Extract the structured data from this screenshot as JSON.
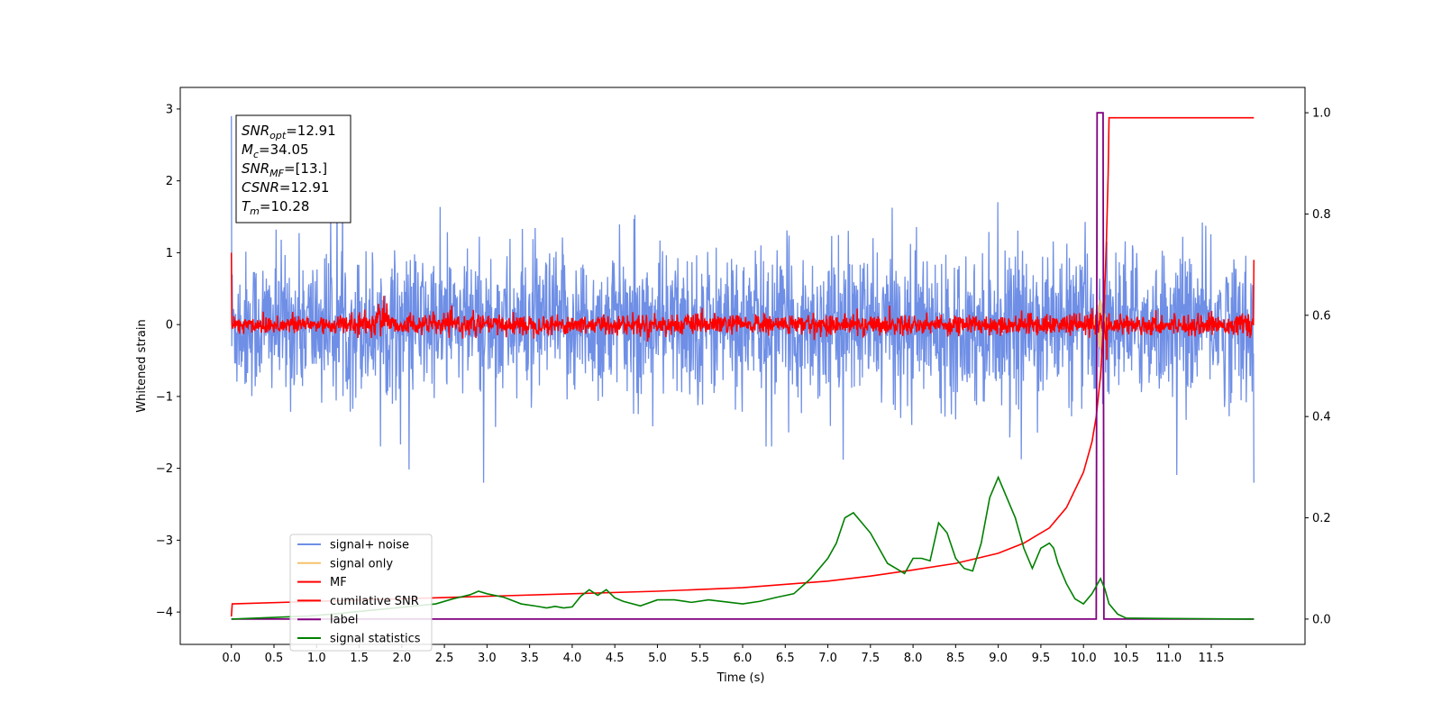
{
  "chart_data": {
    "type": "line",
    "xlabel": "Time (s)",
    "ylabel": "Whitened strain",
    "xlim": [
      -0.6,
      12.6
    ],
    "ylim": [
      -4.45,
      3.3
    ],
    "y2lim": [
      -0.05,
      1.05
    ],
    "x_ticks": [
      "0.0",
      "0.5",
      "1.0",
      "1.5",
      "2.0",
      "2.5",
      "3.0",
      "3.5",
      "4.0",
      "4.5",
      "5.0",
      "5.5",
      "6.0",
      "6.5",
      "7.0",
      "7.5",
      "8.0",
      "8.5",
      "9.0",
      "9.5",
      "10.0",
      "10.5",
      "11.0",
      "11.5"
    ],
    "y_ticks": [
      "3",
      "2",
      "1",
      "0",
      "−1",
      "−2",
      "−3",
      "−4"
    ],
    "y2_ticks": [
      "1.0",
      "0.8",
      "0.6",
      "0.4",
      "0.2",
      "0.0"
    ],
    "info_box": [
      {
        "base": "SNR",
        "sub": "opt",
        "value": "=12.91"
      },
      {
        "base": "M",
        "sub": "c",
        "value": "=34.05"
      },
      {
        "base": "SNR",
        "sub": "MF",
        "value": "=[13.]"
      },
      {
        "base": "CSNR",
        "sub": "",
        "value": "=12.91"
      },
      {
        "base": "T",
        "sub": "m",
        "value": "=10.28"
      }
    ],
    "legend_position": "lower-left",
    "series": [
      {
        "name": "signal+ noise",
        "color": "#6f8fe6",
        "axis": "left",
        "kind": "noise",
        "x_range": [
          0,
          12
        ],
        "std": 0.5,
        "peak_max": 2.9,
        "peak_min": -2.2
      },
      {
        "name": "signal only",
        "color": "#f5c26b",
        "axis": "left",
        "kind": "chirp",
        "x_center": 10.2,
        "amplitude": 0.35
      },
      {
        "name": "MF",
        "color": "#ff0000",
        "axis": "left",
        "kind": "noise",
        "x_range": [
          0,
          12
        ],
        "std": 0.07,
        "start_value": 1.0,
        "end_value": 0.9
      },
      {
        "name": "cumilative SNR",
        "color": "#ff0000",
        "axis": "right",
        "kind": "curve",
        "x": [
          0.0,
          0.01,
          1.0,
          2.0,
          3.0,
          4.0,
          5.0,
          6.0,
          7.0,
          7.5,
          8.0,
          8.5,
          9.0,
          9.3,
          9.6,
          9.8,
          10.0,
          10.1,
          10.15,
          10.2,
          10.24,
          10.27,
          10.29,
          10.3,
          12.0
        ],
        "y": [
          0.005,
          0.03,
          0.035,
          0.04,
          0.045,
          0.05,
          0.055,
          0.062,
          0.075,
          0.085,
          0.097,
          0.11,
          0.13,
          0.15,
          0.18,
          0.22,
          0.29,
          0.35,
          0.4,
          0.48,
          0.6,
          0.75,
          0.88,
          0.99,
          0.99
        ]
      },
      {
        "name": "label",
        "color": "#800080",
        "axis": "right",
        "kind": "step",
        "x": [
          0.0,
          10.15,
          10.16,
          10.23,
          10.24,
          12.0
        ],
        "y": [
          0.0,
          0.0,
          1.0,
          1.0,
          0.0,
          0.0
        ]
      },
      {
        "name": "signal statistics",
        "color": "#008000",
        "axis": "right",
        "kind": "curve",
        "x": [
          0.0,
          0.3,
          0.6,
          0.9,
          1.2,
          1.5,
          1.8,
          2.1,
          2.4,
          2.6,
          2.8,
          2.9,
          3.0,
          3.2,
          3.4,
          3.6,
          3.7,
          3.8,
          3.9,
          4.0,
          4.1,
          4.2,
          4.3,
          4.4,
          4.5,
          4.6,
          4.8,
          5.0,
          5.2,
          5.4,
          5.6,
          5.8,
          6.0,
          6.2,
          6.4,
          6.6,
          6.8,
          7.0,
          7.1,
          7.2,
          7.3,
          7.4,
          7.5,
          7.6,
          7.7,
          7.8,
          7.9,
          8.0,
          8.1,
          8.2,
          8.3,
          8.4,
          8.5,
          8.6,
          8.7,
          8.8,
          8.9,
          9.0,
          9.1,
          9.2,
          9.3,
          9.4,
          9.5,
          9.6,
          9.65,
          9.7,
          9.8,
          9.9,
          10.0,
          10.1,
          10.2,
          10.25,
          10.3,
          10.4,
          10.5,
          11.0,
          12.0
        ],
        "y": [
          0.0,
          0.002,
          0.004,
          0.006,
          0.01,
          0.015,
          0.02,
          0.025,
          0.03,
          0.04,
          0.048,
          0.055,
          0.05,
          0.043,
          0.03,
          0.025,
          0.022,
          0.025,
          0.022,
          0.024,
          0.045,
          0.058,
          0.047,
          0.058,
          0.042,
          0.035,
          0.026,
          0.038,
          0.038,
          0.033,
          0.038,
          0.034,
          0.03,
          0.035,
          0.043,
          0.05,
          0.08,
          0.12,
          0.15,
          0.2,
          0.21,
          0.19,
          0.17,
          0.14,
          0.11,
          0.1,
          0.09,
          0.12,
          0.12,
          0.115,
          0.19,
          0.17,
          0.12,
          0.1,
          0.095,
          0.15,
          0.24,
          0.28,
          0.24,
          0.2,
          0.14,
          0.1,
          0.14,
          0.15,
          0.14,
          0.11,
          0.07,
          0.04,
          0.03,
          0.05,
          0.08,
          0.06,
          0.03,
          0.01,
          0.002,
          0.001,
          0.0
        ]
      }
    ]
  }
}
